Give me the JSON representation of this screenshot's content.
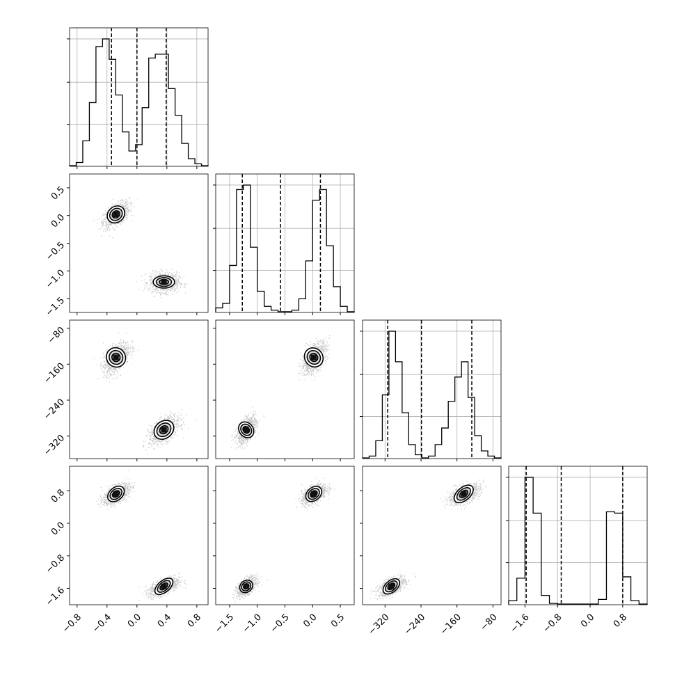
{
  "chart_data": {
    "type": "corner",
    "title": "",
    "grid": true,
    "dims": [
      {
        "range": [
          -0.9,
          0.95
        ],
        "ticks": [
          -0.8,
          -0.4,
          0.0,
          0.4,
          0.8
        ],
        "tick_labels": [
          "−0.8",
          "−0.4",
          "0.0",
          "0.4",
          "0.8"
        ],
        "quantiles": [
          -0.34,
          0.0,
          0.39
        ],
        "hist": [
          0.5,
          3,
          20,
          50,
          94,
          100,
          84,
          56,
          27,
          12,
          17,
          46,
          85,
          88,
          88,
          61,
          40,
          18,
          6,
          2,
          0.5
        ]
      },
      {
        "range": [
          -1.75,
          0.75
        ],
        "ticks": [
          -1.5,
          -1.0,
          -0.5,
          0.0,
          0.5
        ],
        "tick_labels": [
          "−1.5",
          "−1.0",
          "−0.5",
          "0.0",
          "0.5"
        ],
        "quantiles": [
          -1.27,
          -0.58,
          0.14
        ],
        "hist": [
          3,
          6,
          31,
          81,
          84,
          43,
          14,
          4,
          1.5,
          0.5,
          0.5,
          1.5,
          9,
          34,
          74,
          81,
          44,
          17,
          4,
          0.5
        ]
      },
      {
        "range": [
          -370,
          -62
        ],
        "ticks": [
          -320,
          -240,
          -160,
          -80
        ],
        "tick_labels": [
          "−320",
          "−240",
          "−160",
          "−80"
        ],
        "quantiles": [
          -314,
          -239,
          -127
        ],
        "hist": [
          0.5,
          2,
          14,
          50,
          100,
          76,
          36,
          11,
          3,
          0.5,
          2,
          11,
          24,
          45,
          64,
          76,
          48,
          18,
          6,
          2,
          0.5
        ]
      },
      {
        "range": [
          -2.0,
          1.4
        ],
        "ticks": [
          -1.6,
          -0.8,
          0.0,
          0.8
        ],
        "tick_labels": [
          "−1.6",
          "−0.8",
          "0.0",
          "0.8"
        ],
        "quantiles": [
          -1.57,
          -0.71,
          0.8
        ],
        "hist": [
          3,
          20,
          96,
          69,
          7,
          1,
          0.5,
          0.5,
          0.5,
          0.5,
          0.5,
          4,
          70,
          69,
          21,
          3,
          0.5
        ]
      }
    ],
    "modes": [
      {
        "center": [
          -0.28,
          0.02,
          -145,
          0.72
        ],
        "sd": [
          0.07,
          0.09,
          14,
          0.1
        ]
      },
      {
        "center": [
          0.36,
          -1.2,
          -306,
          -1.55
        ],
        "sd": [
          0.08,
          0.07,
          12,
          0.09
        ]
      }
    ],
    "scatter_density": 900
  }
}
